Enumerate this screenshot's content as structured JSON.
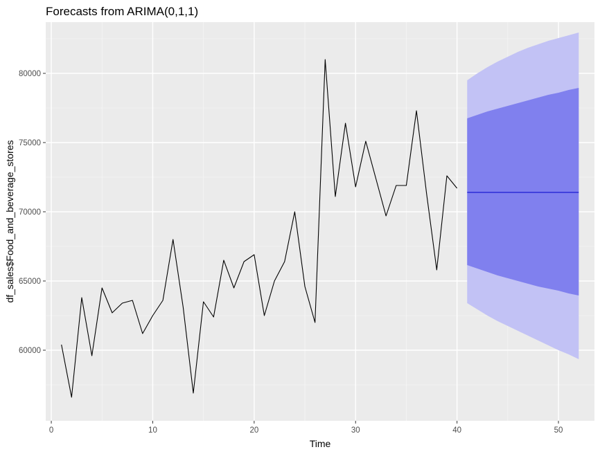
{
  "chart_data": {
    "type": "line",
    "title": "Forecasts from ARIMA(0,1,1)",
    "xlabel": "Time",
    "ylabel": "df_sales$Food_and_beverage_stores",
    "xlim": [
      -0.55,
      53.55
    ],
    "ylim": [
      54900,
      83700
    ],
    "x_ticks": [
      0,
      10,
      20,
      30,
      40,
      50
    ],
    "y_ticks": [
      60000,
      65000,
      70000,
      75000,
      80000
    ],
    "grid": true,
    "legend": "none",
    "colors": {
      "panel": "#ebebeb",
      "grid_major": "#ffffff",
      "grid_minor": "#f5f5f5",
      "series": "#000000",
      "forecast_line": "#0000cc",
      "band_80": "#8080ee",
      "band_95": "#c2c2f5",
      "tick": "#333333"
    },
    "series": [
      {
        "x": [
          1,
          2,
          3,
          4,
          5,
          6,
          7,
          8,
          9,
          10,
          11,
          12,
          13,
          14,
          15,
          16,
          17,
          18,
          19,
          20,
          21,
          22,
          23,
          24,
          25,
          26,
          27,
          28,
          29,
          30,
          31,
          32,
          33,
          34,
          35,
          36,
          37,
          38,
          39,
          40
        ],
        "values": [
          60400,
          56600,
          63800,
          59600,
          64500,
          62700,
          63400,
          63600,
          61200,
          62500,
          63600,
          68000,
          63100,
          56900,
          63500,
          62400,
          66500,
          64500,
          66400,
          66900,
          62500,
          65000,
          66400,
          70000,
          64600,
          62000,
          81000,
          71100,
          76400,
          71800,
          75100,
          72400,
          69700,
          71900,
          71900,
          77300,
          71300,
          65800,
          72600,
          71700
        ]
      }
    ],
    "forecast": {
      "x": [
        41,
        42,
        43,
        44,
        45,
        46,
        47,
        48,
        49,
        50,
        51,
        52
      ],
      "mean": [
        71400,
        71400,
        71400,
        71400,
        71400,
        71400,
        71400,
        71400,
        71400,
        71400,
        71400,
        71400
      ],
      "lo80": [
        66150,
        65900,
        65650,
        65400,
        65200,
        65000,
        64800,
        64600,
        64450,
        64300,
        64100,
        63950
      ],
      "hi80": [
        76750,
        77000,
        77250,
        77450,
        77650,
        77850,
        78050,
        78250,
        78450,
        78600,
        78800,
        78950
      ],
      "lo95": [
        63400,
        62950,
        62500,
        62100,
        61750,
        61400,
        61050,
        60700,
        60350,
        60000,
        59700,
        59350
      ],
      "hi95": [
        79500,
        80000,
        80450,
        80850,
        81200,
        81550,
        81850,
        82100,
        82350,
        82550,
        82750,
        82950
      ]
    }
  }
}
